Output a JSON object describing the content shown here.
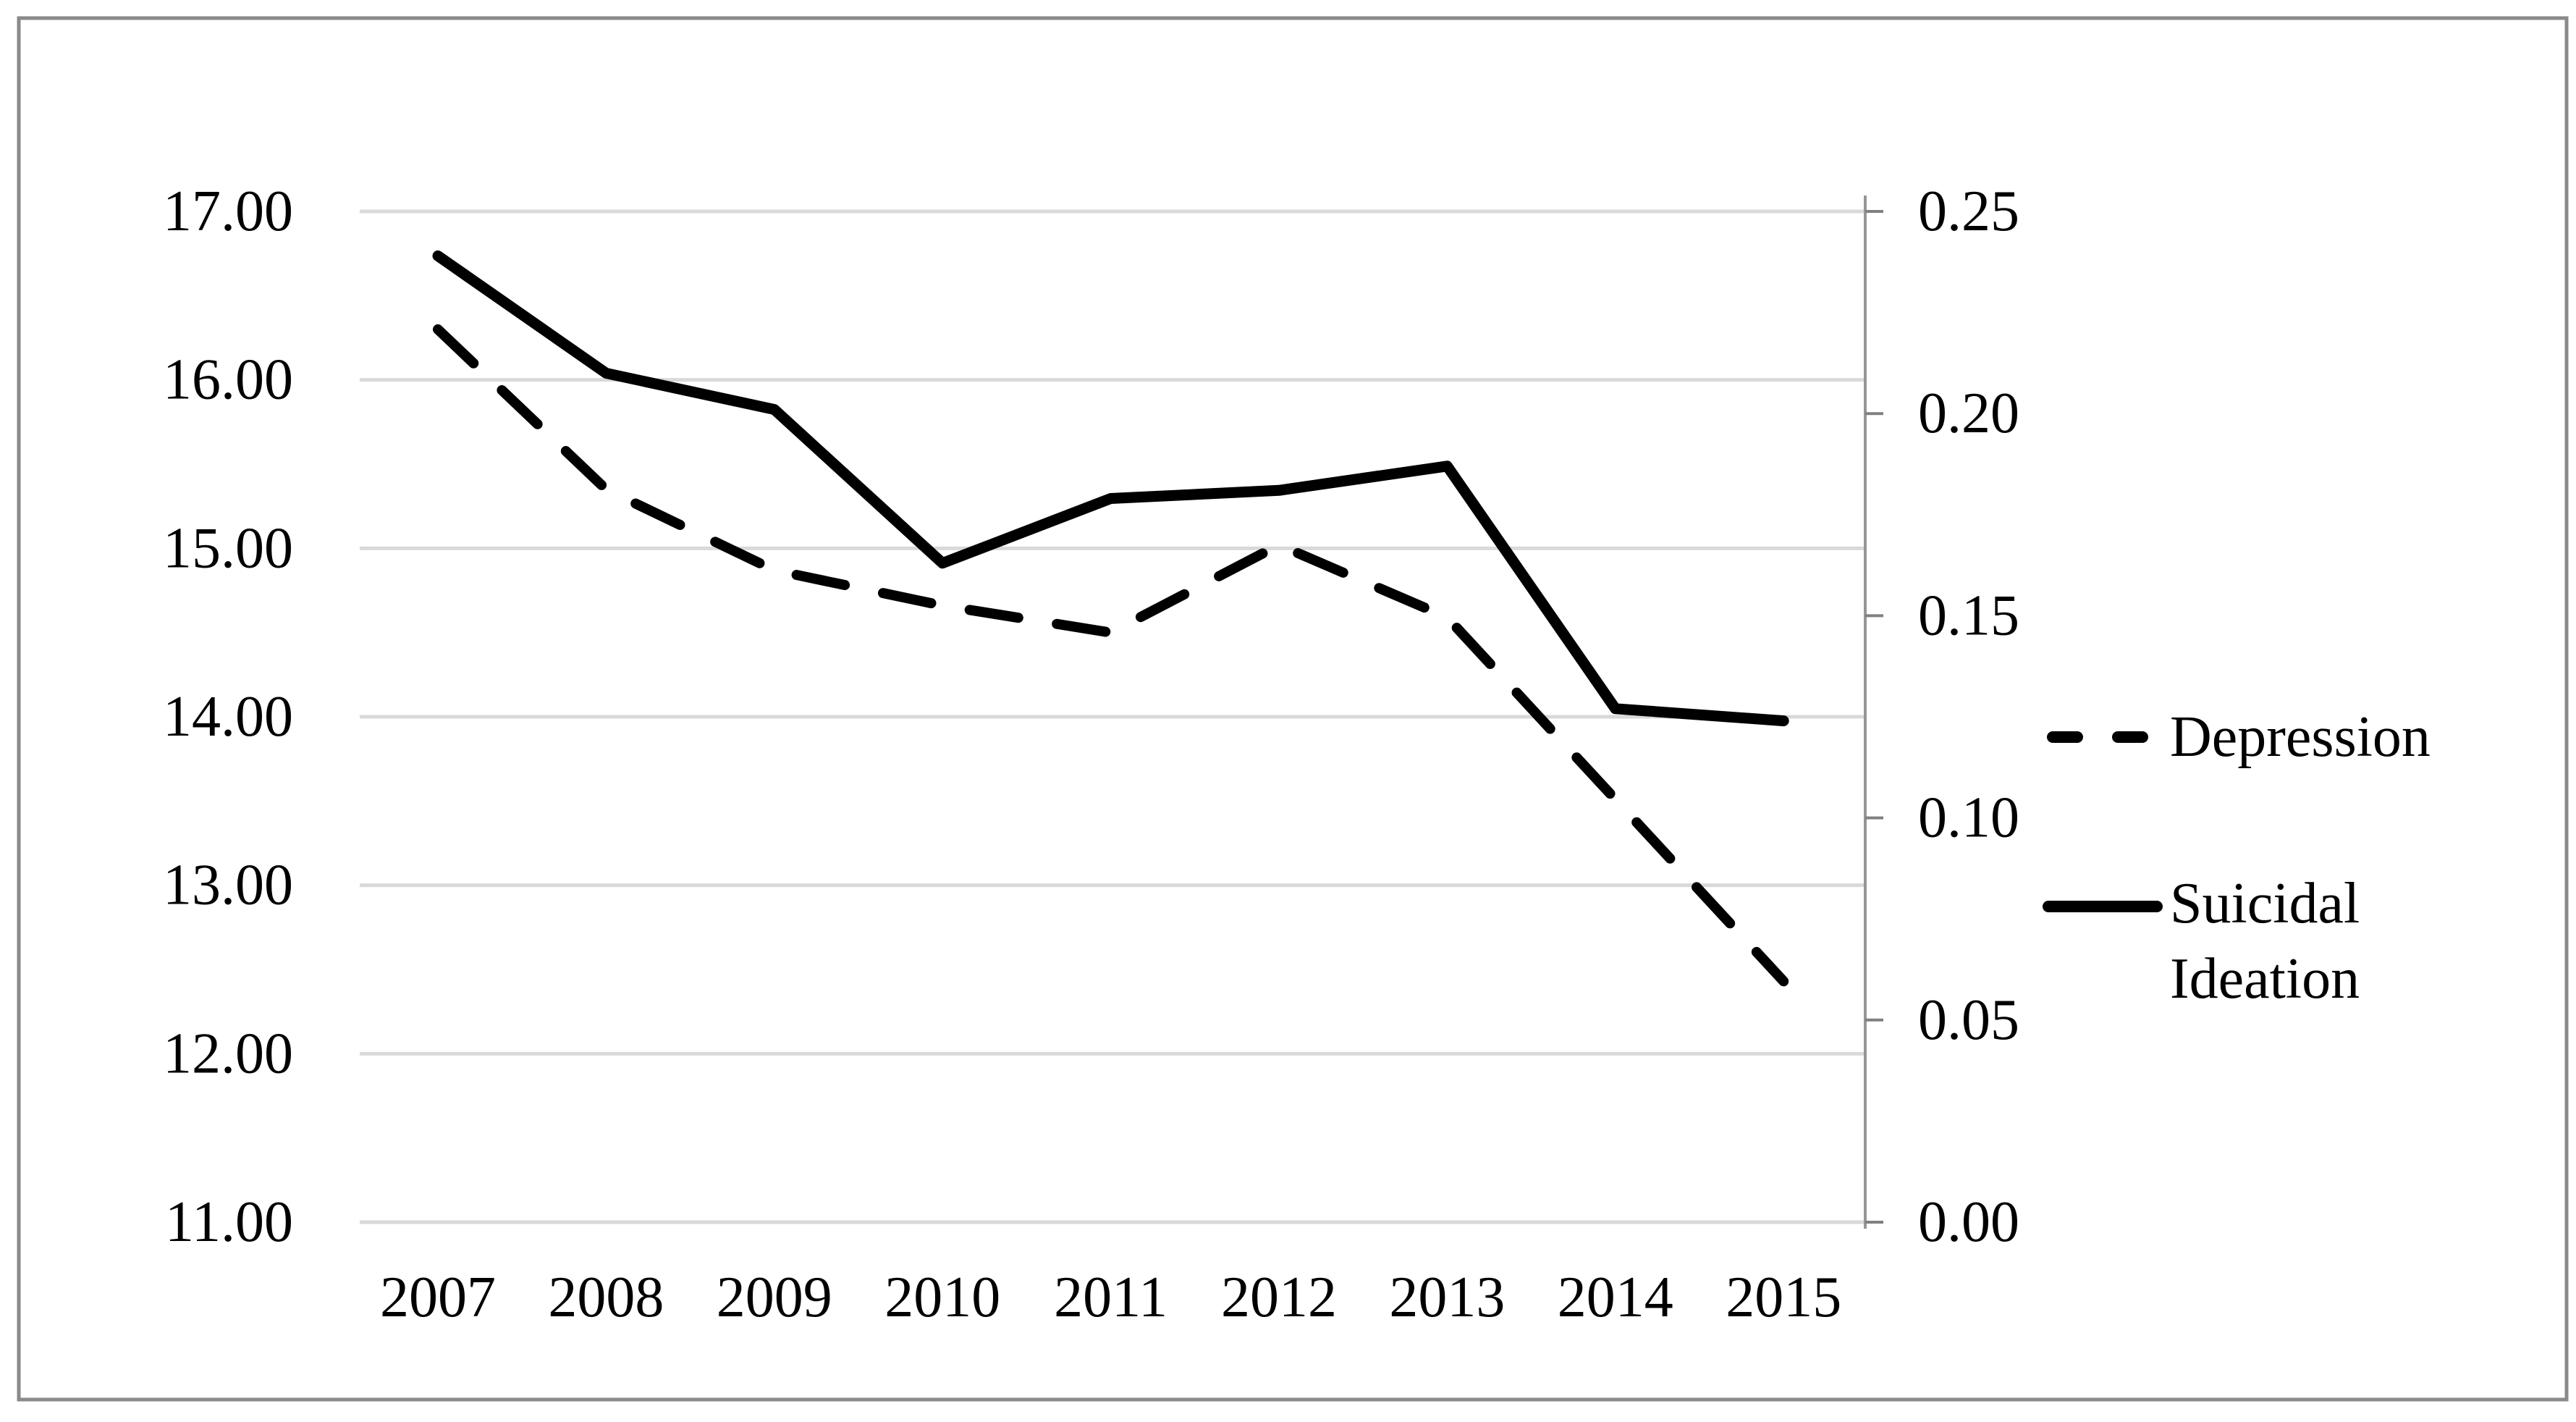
{
  "figure": {
    "background": "#ffffff",
    "border_color": "#8a8a8a"
  },
  "chart_data": {
    "type": "line",
    "title": "",
    "xlabel": "",
    "ylabel_left": "",
    "ylabel_right": "",
    "categories": [
      "2007",
      "2008",
      "2009",
      "2010",
      "2011",
      "2012",
      "2013",
      "2014",
      "2015"
    ],
    "series": [
      {
        "name": "Depression",
        "axis": "left",
        "style": "dashed",
        "color": "#000000",
        "values": [
          16.3,
          15.35,
          14.87,
          14.66,
          14.5,
          15.02,
          14.59,
          13.51,
          12.43
        ]
      },
      {
        "name": "Suicidal Ideation",
        "axis": "right",
        "style": "solid",
        "color": "#000000",
        "values": [
          0.239,
          0.21,
          0.201,
          0.163,
          0.179,
          0.181,
          0.187,
          0.127,
          0.124
        ]
      }
    ],
    "left_axis": {
      "min": 11.0,
      "max": 17.0,
      "tick_step": 1.0,
      "tick_labels": [
        "17.00",
        "16.00",
        "15.00",
        "14.00",
        "13.00",
        "12.00",
        "11.00"
      ]
    },
    "right_axis": {
      "min": 0.0,
      "max": 0.25,
      "tick_step": 0.05,
      "tick_labels": [
        "0.25",
        "0.20",
        "0.15",
        "0.10",
        "0.05",
        "0.00"
      ]
    },
    "grid": true,
    "legend": {
      "position": "right",
      "entries": [
        {
          "style": "dashed",
          "label_lines": [
            "Depression"
          ]
        },
        {
          "style": "solid",
          "label_lines": [
            "Suicidal",
            "Ideation"
          ]
        }
      ]
    },
    "colors": {
      "gridline": "#d9d9d9",
      "axis_line": "#969696",
      "tick": "#808080",
      "series": "#000000",
      "text": "#000000",
      "border": "#8a8a8a"
    }
  }
}
